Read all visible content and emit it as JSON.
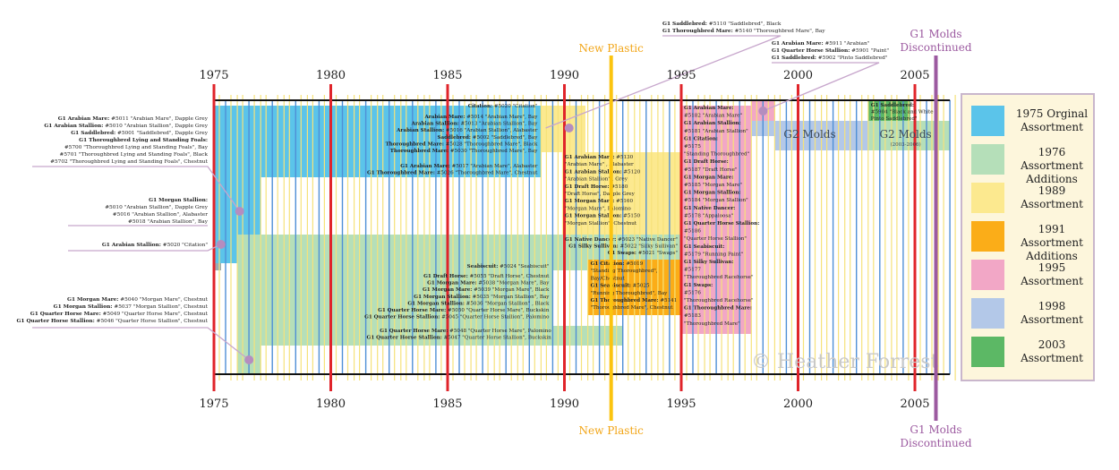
{
  "axis": {
    "years_top": [
      "1975",
      "1980",
      "1985",
      "1990",
      "1995",
      "2000",
      "2005"
    ],
    "years_bottom": [
      "1975",
      "1980",
      "1985",
      "1990",
      "1995",
      "2000",
      "2005"
    ],
    "range": [
      1975,
      2006.5
    ]
  },
  "events": {
    "new_plastic_top": "New Plastic",
    "new_plastic_bottom": "New Plastic",
    "new_plastic_year": 1992.0,
    "g1_discontinued_top": [
      "G1 Molds",
      "Discontinued"
    ],
    "g1_discontinued_bottom": [
      "G1 Molds",
      "Discontinued"
    ],
    "g1_discontinued_year": 2005.9
  },
  "watermark": "© Heather Forrest",
  "colors": {
    "c1975": "#5bc4ea",
    "c1976": "#b5dfb9",
    "c1989": "#fce98f",
    "c1991": "#fbad18",
    "c1995": "#f2a7c6",
    "c1998": "#b3c8e8",
    "c2003": "#5cb865",
    "red": "#e0242a",
    "plastic": "#fbc40f",
    "purple": "#9c5aa0"
  },
  "legend": [
    {
      "lines": [
        "1975 Orginal",
        "Assortment"
      ],
      "color": "#5bc4ea"
    },
    {
      "lines": [
        "1976 Assortment",
        "Additions"
      ],
      "color": "#b5dfb9"
    },
    {
      "lines": [
        "1989",
        "Assortment"
      ],
      "color": "#fce98f"
    },
    {
      "lines": [
        "1991 Assortment",
        "Additions"
      ],
      "color": "#fbad18"
    },
    {
      "lines": [
        "1995",
        "Assortment"
      ],
      "color": "#f2a7c6"
    },
    {
      "lines": [
        "1998",
        "Assortment"
      ],
      "color": "#b3c8e8"
    },
    {
      "lines": [
        "2003",
        "Assortment"
      ],
      "color": "#5cb865"
    }
  ],
  "g2": {
    "label": "G2 Molds",
    "label2": "G2 Molds",
    "years": "(2003-2006)"
  },
  "callouts": {
    "top_1998": [
      {
        "b": "G1 Saddlebred:",
        "t": " #5110 \"Saddlebred\", Black"
      },
      {
        "b": "G1 Thoroughbred Mare:",
        "t": " #5140 \"Thoroughbred Mare\", Bay"
      }
    ],
    "top_2000": [
      {
        "b": "G1 Arabian Mare:",
        "t": " #5911 \"Arabian\""
      },
      {
        "b": "G1 Quarter Horse Stallion:",
        "t": " #5901 \"Paint\""
      },
      {
        "b": "G1 Saddlebred:",
        "t": " #5902 \"Pinto Saddlebred\""
      }
    ],
    "left_1975": [
      {
        "b": "G1 Arabian Mare:",
        "t": " #5011 \"Arabian Mare\", Dapple Grey"
      },
      {
        "b": "G1 Arabian Stallion:",
        "t": " #5010 \"Arabian Stallion\", Dapple Grey"
      },
      {
        "b": "G1 Saddlebred:",
        "t": " #5001 \"Saddlebred\", Dapple Grey"
      },
      {
        "b": "G1 Thoroughbred Lying and Standing Foals:",
        "t": ""
      },
      {
        "b": "",
        "t": "#5700 \"Thoroughbred Lying and Standing Foals\", Bay"
      },
      {
        "b": "",
        "t": "#5701 \"Thoroughbred Lying and Standing Foals\", Black"
      },
      {
        "b": "",
        "t": "#5702 \"Thoroughbred Lying and Standing Foals\", Chestnut"
      }
    ],
    "left_morgan": [
      {
        "b": "G1 Morgan Stallion:",
        "t": ""
      },
      {
        "b": "",
        "t": "#5010 \"Arabian Stallion\", Dapple Grey"
      },
      {
        "b": "",
        "t": "#5016 \"Arabian Stallion\", Alabaster"
      },
      {
        "b": "",
        "t": "#5018 \"Arabian Stallion\", Bay"
      }
    ],
    "left_citation": [
      {
        "b": "G1 Arabian Stallion:",
        "t": " #5020 \"Citation\""
      }
    ],
    "left_1976": [
      {
        "b": "G1 Morgan Mare:",
        "t": " #5040 \"Morgan Mare\", Chestnut"
      },
      {
        "b": "G1 Morgan Stallion:",
        "t": " #5037 \"Morgan Stallion\", Chestnut"
      },
      {
        "b": "G1 Quarter Horse Mare:",
        "t": " #5049 \"Quarter Horse Mare\", Chestnut"
      },
      {
        "b": "G1 Quarter Horse Stallion:",
        "t": " #5046 \"Quarter Horse Stallion\", Chestnut"
      }
    ]
  },
  "blocks": {
    "citation_bar": [
      {
        "b": "Citation:",
        "t": " #5020 \"Citation\""
      }
    ],
    "arab_block": [
      {
        "b": "Arabian Mare:",
        "t": " #5014 \"Arabian Mare\", Bay"
      },
      {
        "b": "Arabian Stallion:",
        "t": " #5013 \"Arabian Stallion\", Bay"
      },
      {
        "b": "Arabian Stallion:",
        "t": " #5016 \"Arabian Stallion\", Alabaster"
      },
      {
        "b": "Saddlebred:",
        "t": " #5002 \"Saddlebred\", Bay"
      },
      {
        "b": "Thoroughbred Mare:",
        "t": " #5028 \"Thoroughbred Mare\", Black"
      },
      {
        "b": "Thoroughbred Mare:",
        "t": " #5030 \"Thoroughbred Mare\", Bay"
      }
    ],
    "alab_block": [
      {
        "b": "G1 Arabian Mare:",
        "t": " #5017 \"Arabian Mare\", Alabaster"
      },
      {
        "b": "G1 Thoroughbred Mare:",
        "t": " #5026 \"Thoroughbred Mare\", Chestnut"
      }
    ],
    "native_block": [
      {
        "b": "G1 Native Dancer:",
        "t": " #5023 \"Native Dancer\""
      },
      {
        "b": "G1 Silky Sullivan:",
        "t": " #5022 \"Silky Sullivan\""
      },
      {
        "b": "G1 Swaps:",
        "t": " #5021 \"Swaps\""
      }
    ],
    "seabiscuit_bar": [
      {
        "b": "Seabiscuit:",
        "t": " #5024 \"Seabiscuit\""
      }
    ],
    "draft_block": [
      {
        "b": "G1 Draft Horse:",
        "t": " #5055 \"Draft Horse\", Chestnut"
      },
      {
        "b": "G1 Morgan Mare:",
        "t": " #5038 \"Morgan Mare\", Bay"
      },
      {
        "b": "G1 Morgan Mare:",
        "t": " #5039 \"Morgan Mare\", Black"
      },
      {
        "b": "G1 Morgan Stallion:",
        "t": " #5035 \"Morgan Stallion\", Bay"
      },
      {
        "b": "G1 Morgan Stallion:",
        "t": " #5036 \"Morgan Stallion\" , Black"
      },
      {
        "b": "G1 Quarter Horse Mare:",
        "t": " #5050 \"Quarter Horse Mare\", Buckskin"
      },
      {
        "b": "G1 Quarter Horse Stallion:",
        "t": " #5045 \"Quarter Horse Stallion\", Palomino"
      }
    ],
    "qh_block": [
      {
        "b": "G1 Quarter Horse Mare:",
        "t": " #5048 \"Quarter Horse Mare\", Palomino"
      },
      {
        "b": "G1 Quarter Horse Stallion:",
        "t": " #5047 \"Quarter Horse Stallion\", Buckskin"
      }
    ],
    "y1989_block": [
      {
        "b": "G1 Arabian Mare:",
        "t": " #5130"
      },
      {
        "b": "",
        "t": "\"Arabian Mare\" , Alabaster"
      },
      {
        "b": "G1 Arabian Stallion:",
        "t": " #5120"
      },
      {
        "b": "",
        "t": "\"Arabian Stallion\" , Grey"
      },
      {
        "b": "G1 Draft Horse:",
        "t": " #5180"
      },
      {
        "b": "",
        "t": "\"Draft Horse\",  Dapple Grey"
      },
      {
        "b": "G1 Morgan Mare:",
        "t": " #5160"
      },
      {
        "b": "",
        "t": "\"Morgan Mare\", Palomino"
      },
      {
        "b": "G1 Morgan Stallion:",
        "t": " #5150"
      },
      {
        "b": "",
        "t": "\"Morgan Stallion\", Chestnut"
      }
    ],
    "y1991_block": [
      {
        "b": "G1 Citation:",
        "t": " #5019"
      },
      {
        "b": "",
        "t": "\"Standing Thoroughbred\","
      },
      {
        "b": "",
        "t": "Bay/Chestnut"
      },
      {
        "b": "G1 Seabiscuit:",
        "t": " #5025"
      },
      {
        "b": "",
        "t": "\"Running Thoroughbred\", Bay"
      },
      {
        "b": "G1 Thoroughbred Mare:",
        "t": " #5141"
      },
      {
        "b": "",
        "t": "\"Thoroughbred Mare\", Chestnut"
      }
    ],
    "y1995_block": [
      {
        "b": "G1 Arabian Mare:",
        "t": ""
      },
      {
        "b": "",
        "t": "#5182 \"Arabian Mare\""
      },
      {
        "b": "G1 Arabian Stallion:",
        "t": ""
      },
      {
        "b": "",
        "t": "#5181 \"Arabian Stallion\""
      },
      {
        "b": "G1 Citation:",
        "t": ""
      },
      {
        "b": "",
        "t": "#5175"
      },
      {
        "b": "",
        "t": "\"Standing Thoroughbred\""
      },
      {
        "b": "G1 Draft Horse:",
        "t": ""
      },
      {
        "b": "",
        "t": "#5187 \"Draft Horse\""
      },
      {
        "b": "G1 Morgan Mare:",
        "t": ""
      },
      {
        "b": "",
        "t": "#5185 \"Morgan Mare\""
      },
      {
        "b": "G1 Morgan Stallion:",
        "t": ""
      },
      {
        "b": "",
        "t": "#5184 \"Morgan Stallion\""
      },
      {
        "b": "G1 Native Dancer:",
        "t": ""
      },
      {
        "b": "",
        "t": "#5178 \"Appaloosa\""
      },
      {
        "b": "G1 Quarter Horse Stallion:",
        "t": ""
      },
      {
        "b": "",
        "t": "#5186"
      },
      {
        "b": "",
        "t": "\"Quarter Horse Stallion\""
      },
      {
        "b": "G1 Seabiscuit:",
        "t": ""
      },
      {
        "b": "",
        "t": "#5179 \"Running Paint\""
      },
      {
        "b": "G1 Silky Sullivan:",
        "t": ""
      },
      {
        "b": "",
        "t": "#5177"
      },
      {
        "b": "",
        "t": "\"Thoroughbred Racehorse\""
      },
      {
        "b": "G1 Swaps:",
        "t": ""
      },
      {
        "b": "",
        "t": "#5176"
      },
      {
        "b": "",
        "t": "\"Thoroughbred Racehorse\""
      },
      {
        "b": "G1 Thoroughbred Mare:",
        "t": ""
      },
      {
        "b": "",
        "t": "#5183"
      },
      {
        "b": "",
        "t": "\"Thoroughbred Mare\""
      }
    ],
    "y2003_block": [
      {
        "b": "G1 Saddlebred:",
        "t": ""
      },
      {
        "b": "",
        "t": "#5904 \"Black and White"
      },
      {
        "b": "",
        "t": "Pinto Saddlebred\""
      }
    ]
  }
}
